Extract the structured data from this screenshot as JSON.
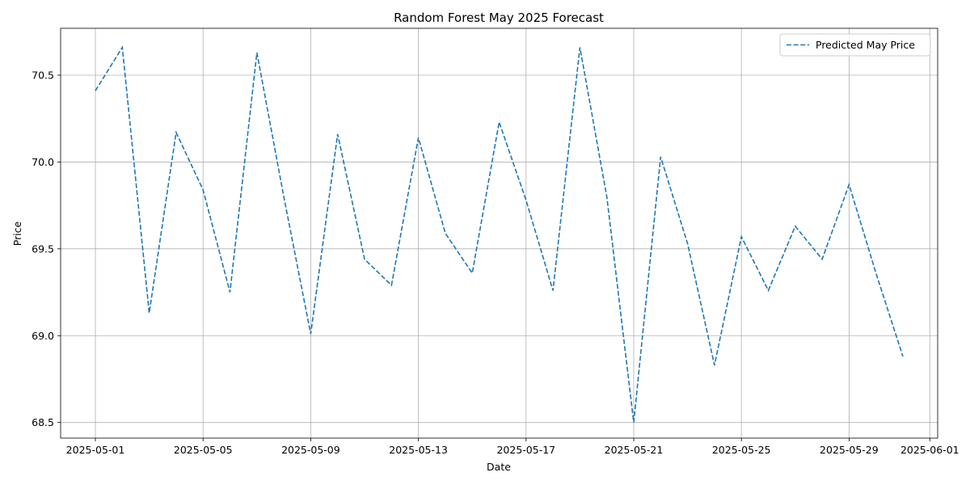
{
  "chart_data": {
    "type": "line",
    "title": "Random Forest May 2025 Forecast",
    "xlabel": "Date",
    "ylabel": "Price",
    "xlim": [
      "2025-04-29T17:00",
      "2025-06-01T07:00"
    ],
    "ylim": [
      68.41,
      70.77
    ],
    "grid": true,
    "legend_position": "top-right",
    "x_ticks": [
      "2025-05-01",
      "2025-05-05",
      "2025-05-09",
      "2025-05-13",
      "2025-05-17",
      "2025-05-21",
      "2025-05-25",
      "2025-05-29",
      "2025-06-01"
    ],
    "y_ticks": [
      "68.5",
      "69.0",
      "69.5",
      "70.0",
      "70.5"
    ],
    "series": [
      {
        "name": "Predicted May Price",
        "color": "#1f77b4",
        "line_style": "dashed",
        "x": [
          "2025-05-01",
          "2025-05-02",
          "2025-05-03",
          "2025-05-04",
          "2025-05-05",
          "2025-05-06",
          "2025-05-07",
          "2025-05-08",
          "2025-05-09",
          "2025-05-10",
          "2025-05-11",
          "2025-05-12",
          "2025-05-13",
          "2025-05-14",
          "2025-05-15",
          "2025-05-16",
          "2025-05-17",
          "2025-05-18",
          "2025-05-19",
          "2025-05-20",
          "2025-05-21",
          "2025-05-22",
          "2025-05-23",
          "2025-05-24",
          "2025-05-25",
          "2025-05-26",
          "2025-05-27",
          "2025-05-28",
          "2025-05-29",
          "2025-05-30",
          "2025-05-31"
        ],
        "values": [
          70.41,
          70.66,
          69.13,
          70.17,
          69.84,
          69.25,
          70.63,
          69.8,
          69.01,
          70.16,
          69.44,
          69.29,
          70.14,
          69.59,
          69.36,
          70.23,
          69.78,
          69.26,
          70.66,
          69.8,
          68.5,
          70.03,
          69.53,
          68.83,
          69.57,
          69.26,
          69.63,
          69.44,
          69.87,
          69.36,
          68.88
        ]
      }
    ]
  }
}
